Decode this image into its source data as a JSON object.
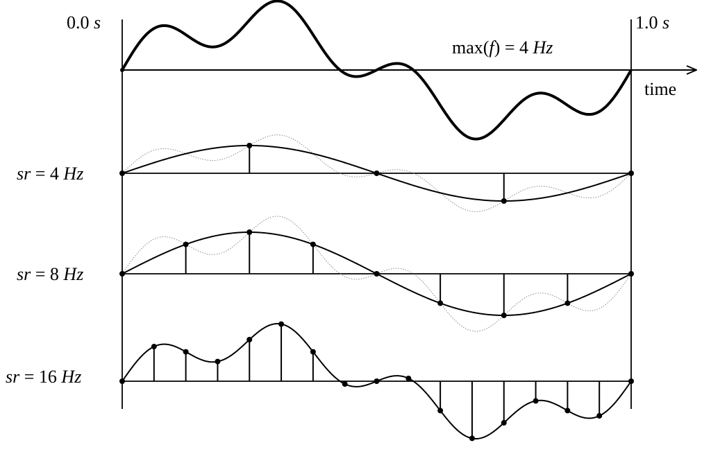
{
  "labels": {
    "start_num": "0.0",
    "start_unit": "s",
    "end_num": "1.0",
    "end_unit": "s",
    "time": "time",
    "max_prefix": "max(",
    "max_var": "f",
    "max_mid": ") = 4",
    "max_unit": "Hz",
    "sr4_var": "sr",
    "sr4_mid": " = 4",
    "sr4_unit": "Hz",
    "sr8_var": "sr",
    "sr8_mid": " = 8",
    "sr8_unit": "Hz",
    "sr16_var": "sr",
    "sr16_mid": " = 16",
    "sr16_unit": "Hz"
  },
  "signal": {
    "duration_s": 1.0,
    "components": [
      {
        "freq_hz": 1,
        "amp": 1.0
      },
      {
        "freq_hz": 4,
        "amp": 0.45
      }
    ]
  },
  "sample_rates_hz": [
    4,
    8,
    16
  ],
  "colors": {
    "ink": "#000000",
    "ghost": "#888888"
  }
}
